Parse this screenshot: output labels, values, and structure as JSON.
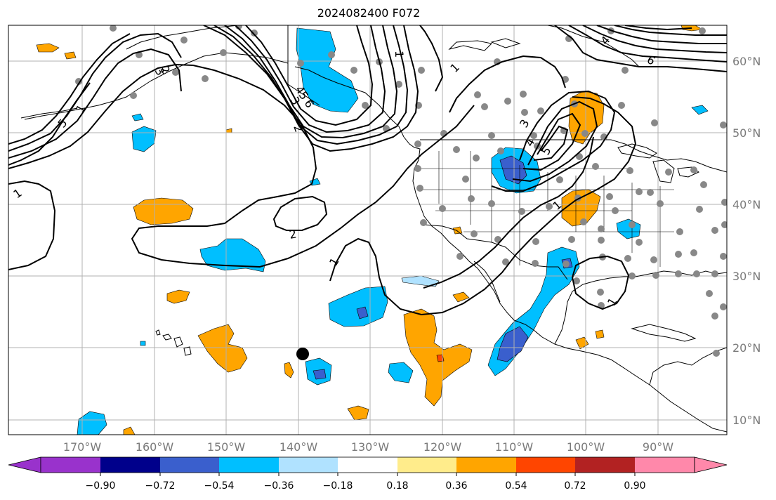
{
  "title": "2024082400 F072",
  "colors": {
    "neg_strong": "#9932cc",
    "neg_dark": "#00008b",
    "neg_mid": "#3a5fcd",
    "neg_light": "#00bfff",
    "neg_pale": "#b0e2ff",
    "neutral": "#ffffff",
    "pos_pale": "#ffec8b",
    "pos_light": "#ffa500",
    "pos_mid": "#ff4500",
    "pos_dark": "#b22222",
    "pos_strong": "#ff88aa",
    "grid": "#b0b0b0",
    "station": "#888888"
  },
  "map": {
    "lon_labels": [
      "170°W",
      "160°W",
      "150°W",
      "140°W",
      "130°W",
      "120°W",
      "110°W",
      "100°W",
      "90°W"
    ],
    "lat_labels": [
      "60°N",
      "50°N",
      "40°N",
      "30°N",
      "20°N",
      "10°N"
    ],
    "contour_labels": [
      "1",
      "2",
      "3",
      "4",
      "5",
      "6",
      "2",
      "1",
      "1",
      "1",
      "3",
      "4",
      "5",
      "1",
      "1",
      "6",
      "5",
      "4",
      "3",
      "2",
      "1"
    ]
  },
  "colorbar": {
    "ticks": [
      "−0.90",
      "−0.72",
      "−0.54",
      "−0.36",
      "−0.18",
      "0.18",
      "0.36",
      "0.54",
      "0.72",
      "0.90"
    ]
  }
}
